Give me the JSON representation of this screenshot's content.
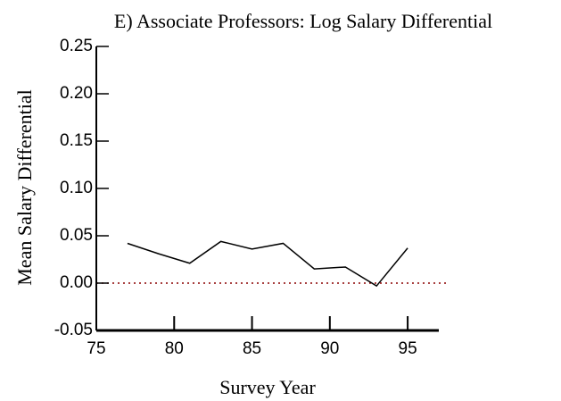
{
  "chart_data": {
    "type": "line",
    "title": "E)  Associate Professors:  Log Salary Differential",
    "xlabel": "Survey Year",
    "ylabel": "Mean Salary Differential",
    "x": [
      77,
      79,
      81,
      83,
      85,
      87,
      89,
      91,
      93,
      95
    ],
    "series": [
      {
        "color": "#000000",
        "values": [
          0.042,
          0.031,
          0.021,
          0.044,
          0.036,
          0.042,
          0.015,
          0.017,
          -0.003,
          0.037
        ]
      }
    ],
    "xlim": [
      75,
      97
    ],
    "xticks": [
      75,
      80,
      85,
      90,
      95
    ],
    "ylim": [
      -0.05,
      0.25
    ],
    "yticks": [
      {
        "value": -0.05,
        "label": "-0.05"
      },
      {
        "value": 0,
        "label": "0.00"
      },
      0.05,
      {
        "value": 0.1,
        "label": "0.10"
      },
      0.15,
      {
        "value": 0.2,
        "label": "0.20"
      },
      0.25
    ],
    "reference_line": {
      "value": 0,
      "color": "#8b0000"
    }
  }
}
